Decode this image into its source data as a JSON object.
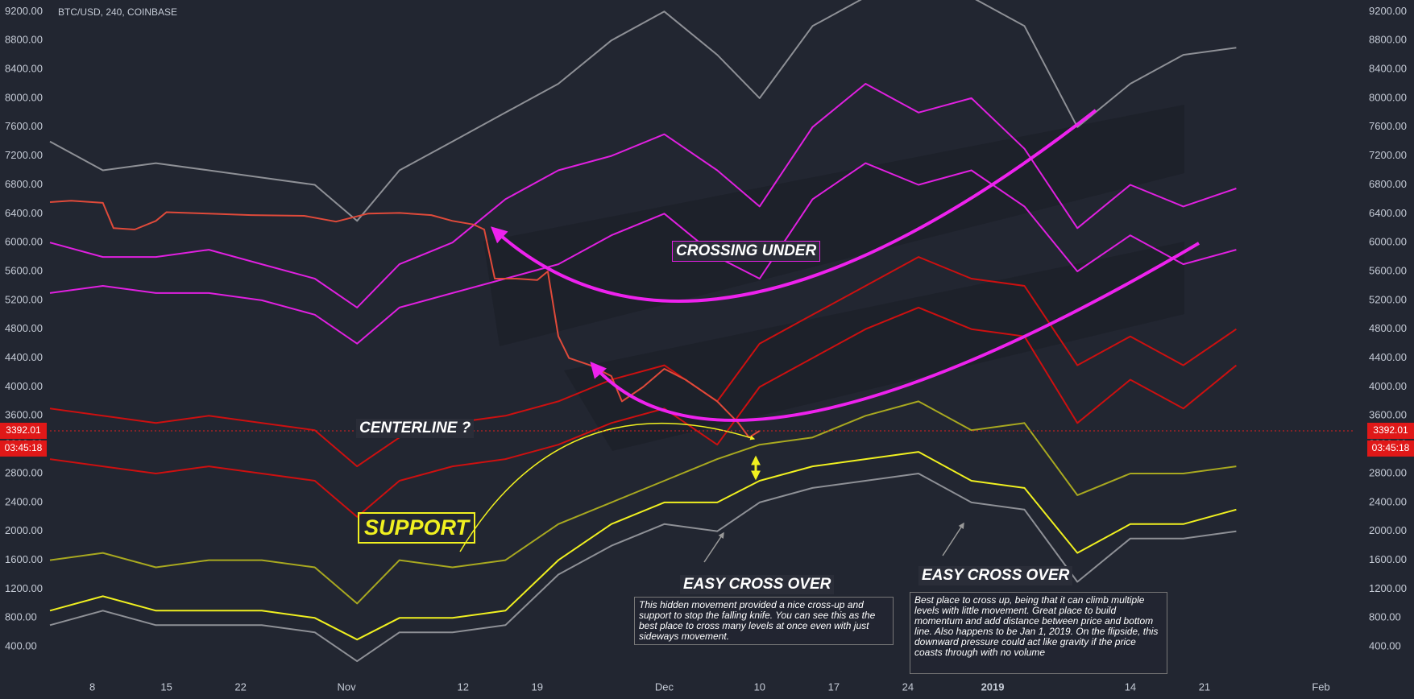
{
  "chart_data": {
    "type": "line",
    "title": "BTC/USD, 240, COINBASE",
    "xlim": [
      3,
      126
    ],
    "xticks": [
      {
        "value": 7,
        "label": "8"
      },
      {
        "value": 14,
        "label": "15"
      },
      {
        "value": 21,
        "label": "22"
      },
      {
        "value": 31,
        "label": "Nov"
      },
      {
        "value": 42,
        "label": "12"
      },
      {
        "value": 49,
        "label": "19"
      },
      {
        "value": 61,
        "label": "Dec"
      },
      {
        "value": 70,
        "label": "10"
      },
      {
        "value": 77,
        "label": "17"
      },
      {
        "value": 84,
        "label": "24"
      },
      {
        "value": 92,
        "label": "2019"
      },
      {
        "value": 105,
        "label": "14"
      },
      {
        "value": 112,
        "label": "21"
      },
      {
        "value": 123,
        "label": "Feb"
      }
    ],
    "ylim": [
      0,
      9360
    ],
    "yticks": [
      {
        "value": 400,
        "label": "400.00"
      },
      {
        "value": 800,
        "label": "800.00"
      },
      {
        "value": 1200,
        "label": "1200.00"
      },
      {
        "value": 1600,
        "label": "1600.00"
      },
      {
        "value": 2000,
        "label": "2000.00"
      },
      {
        "value": 2400,
        "label": "2400.00"
      },
      {
        "value": 2800,
        "label": "2800.00"
      },
      {
        "value": 3200,
        "label": "3200.00"
      },
      {
        "value": 3600,
        "label": "3600.00"
      },
      {
        "value": 4000,
        "label": "4000.00"
      },
      {
        "value": 4400,
        "label": "4400.00"
      },
      {
        "value": 4800,
        "label": "4800.00"
      },
      {
        "value": 5200,
        "label": "5200.00"
      },
      {
        "value": 5600,
        "label": "5600.00"
      },
      {
        "value": 6000,
        "label": "6000.00"
      },
      {
        "value": 6400,
        "label": "6400.00"
      },
      {
        "value": 6800,
        "label": "6800.00"
      },
      {
        "value": 7200,
        "label": "7200.00"
      },
      {
        "value": 7600,
        "label": "7600.00"
      },
      {
        "value": 8000,
        "label": "8000.00"
      },
      {
        "value": 8400,
        "label": "8400.00"
      },
      {
        "value": 8800,
        "label": "8800.00"
      },
      {
        "value": 9200,
        "label": "9200.00"
      }
    ],
    "last_price": 3392.01,
    "countdown": "03:45:18",
    "x": [
      3,
      8,
      13,
      18,
      23,
      28,
      32,
      36,
      41,
      46,
      51,
      56,
      61,
      66,
      70,
      75,
      80,
      85,
      90,
      95,
      100,
      105,
      110,
      115
    ],
    "series": [
      {
        "color": "#8e9096",
        "values": [
          7400,
          7000,
          7100,
          7000,
          6900,
          6800,
          6300,
          7000,
          7400,
          7800,
          8200,
          8800,
          9200,
          8600,
          8000,
          9000,
          9400,
          9400,
          9400,
          9000,
          7600,
          8200,
          8600,
          8700
        ]
      },
      {
        "color": "#e020e0",
        "values": [
          6000,
          5800,
          5800,
          5900,
          5700,
          5500,
          5100,
          5700,
          6000,
          6600,
          7000,
          7200,
          7500,
          7000,
          6500,
          7600,
          8200,
          7800,
          8000,
          7300,
          6200,
          6800,
          6500,
          6750
        ]
      },
      {
        "color": "#e020e0",
        "values": [
          5300,
          5400,
          5300,
          5300,
          5200,
          5000,
          4600,
          5100,
          5300,
          5500,
          5700,
          6100,
          6400,
          5800,
          5500,
          6600,
          7100,
          6800,
          7000,
          6500,
          5600,
          6100,
          5700,
          5900
        ]
      },
      {
        "color": "#cc1010",
        "values": [
          3700,
          3600,
          3500,
          3600,
          3500,
          3400,
          2900,
          3300,
          3500,
          3600,
          3800,
          4100,
          4300,
          3800,
          4600,
          5000,
          5400,
          5800,
          5500,
          5400,
          4300,
          4700,
          4300,
          4800
        ]
      },
      {
        "color": "#cc1010",
        "values": [
          3000,
          2900,
          2800,
          2900,
          2800,
          2700,
          2200,
          2700,
          2900,
          3000,
          3200,
          3500,
          3700,
          3200,
          4000,
          4400,
          4800,
          5100,
          4800,
          4700,
          3500,
          4100,
          3700,
          4300
        ]
      },
      {
        "color": "#a8a820",
        "values": [
          1600,
          1700,
          1500,
          1600,
          1600,
          1500,
          1000,
          1600,
          1500,
          1600,
          2100,
          2400,
          2700,
          3000,
          3200,
          3300,
          3600,
          3800,
          3400,
          3500,
          2500,
          2800,
          2800,
          2900
        ]
      },
      {
        "color": "#f0f020",
        "values": [
          900,
          1100,
          900,
          900,
          900,
          800,
          500,
          800,
          800,
          900,
          1600,
          2100,
          2400,
          2400,
          2700,
          2900,
          3000,
          3100,
          2700,
          2600,
          1700,
          2100,
          2100,
          2300
        ]
      },
      {
        "color": "#8e9096",
        "values": [
          700,
          900,
          700,
          700,
          700,
          600,
          200,
          600,
          600,
          700,
          1400,
          1800,
          2100,
          2000,
          2400,
          2600,
          2700,
          2800,
          2400,
          2300,
          1300,
          1900,
          1900,
          2000
        ]
      },
      {
        "color": "#e04a3a",
        "x": [
          3,
          5,
          8,
          9,
          11,
          13,
          14,
          18,
          22,
          27,
          30,
          33,
          36,
          39,
          41,
          43,
          44,
          45,
          47,
          49,
          50,
          51,
          52,
          54,
          56,
          57,
          59,
          61,
          63,
          65,
          66,
          68,
          69,
          70
        ],
        "values": [
          6560,
          6580,
          6550,
          6200,
          6180,
          6300,
          6420,
          6400,
          6380,
          6370,
          6290,
          6400,
          6410,
          6380,
          6300,
          6250,
          6180,
          5500,
          5500,
          5480,
          5600,
          4700,
          4400,
          4300,
          4150,
          3800,
          4000,
          4250,
          4100,
          3900,
          3800,
          3500,
          3300,
          3392
        ]
      }
    ],
    "annotations": [
      "CROSSING UNDER",
      "CENTERLINE ?",
      "SUPPORT",
      "EASY CROSS OVER",
      "This hidden movement provided a nice cross-up and support to stop the falling knife. You can see this as the best place to cross many levels at once even with just sideways movement.",
      "EASY CROSS OVER",
      "Best place to cross up, being that it can climb multiple levels with little movement. Great place to build momentum and add distance between price and bottom line.  Also happens to be Jan 1, 2019. On the flipside, this downward pressure could act like gravity if the price coasts through with no volume"
    ]
  }
}
